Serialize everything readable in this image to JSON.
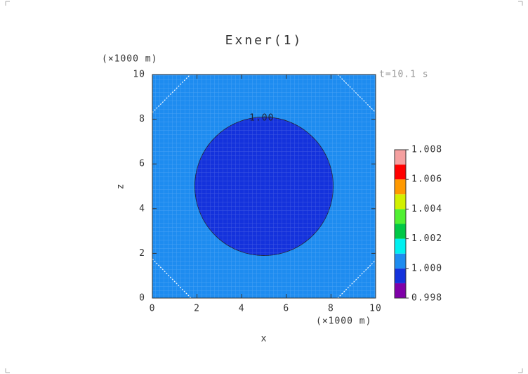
{
  "chart_data": {
    "type": "contour",
    "title": "Exner(1)",
    "x_label": "x",
    "y_label": "z",
    "x_unit": "(×1000 m)",
    "y_unit": "(×1000 m)",
    "time_label": "t=10.1 s",
    "xlim": [
      0,
      10
    ],
    "ylim": [
      0,
      10
    ],
    "xticks": [
      0,
      2,
      4,
      6,
      8,
      10
    ],
    "yticks": [
      0,
      2,
      4,
      6,
      8,
      10
    ],
    "background_color": "#1e8cf0",
    "circle": {
      "center_x": 5,
      "center_z": 5,
      "radius": 3.1,
      "color": "#1432dc"
    },
    "dashed_contours": [
      [
        0,
        8.3,
        1.7,
        10
      ],
      [
        8.3,
        10,
        10,
        8.3
      ],
      [
        0,
        1.75,
        1.73,
        0
      ],
      [
        8.3,
        0,
        10,
        1.7
      ]
    ],
    "contour_labels": [
      {
        "text": "1.00",
        "x": 4.9,
        "z": 8.05
      }
    ],
    "colorbar": {
      "levels": [
        0.998,
        0.999,
        1.0,
        1.001,
        1.002,
        1.003,
        1.004,
        1.005,
        1.006,
        1.007,
        1.008
      ],
      "colors": [
        "#7f00a8",
        "#1432dc",
        "#1e8cf0",
        "#00f0f0",
        "#00c846",
        "#50f032",
        "#d2f000",
        "#ff9900",
        "#ff0000",
        "#f5a0a0"
      ],
      "ticks": [
        {
          "value": 1.008,
          "label": "1.008"
        },
        {
          "value": 1.006,
          "label": "1.006"
        },
        {
          "value": 1.004,
          "label": "1.004"
        },
        {
          "value": 1.002,
          "label": "1.002"
        },
        {
          "value": 1.0,
          "label": "1.000"
        },
        {
          "value": 0.998,
          "label": "0.998"
        }
      ]
    }
  }
}
